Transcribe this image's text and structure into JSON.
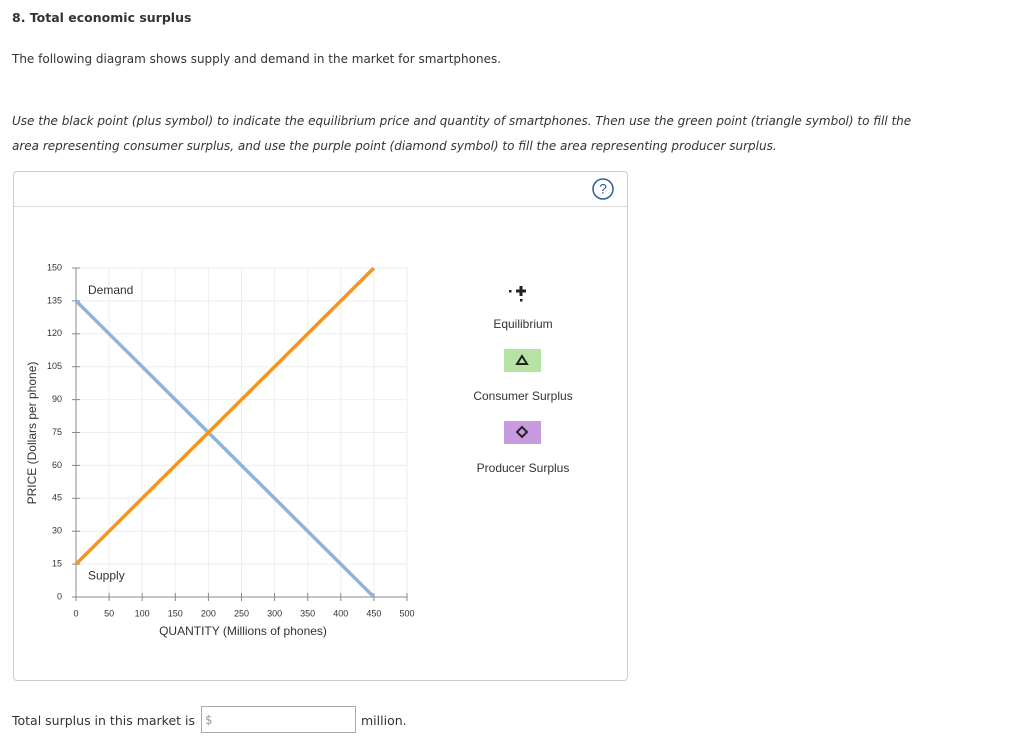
{
  "header": {
    "title": "8. Total economic surplus",
    "intro": "The following diagram shows supply and demand in the market for smartphones.",
    "instructions": [
      "Use the black point (plus symbol) to indicate the equilibrium price and quantity of smartphones. Then use the green point (triangle symbol) to fill the",
      "area representing consumer surplus, and use the purple point (diamond symbol) to fill the area representing producer surplus."
    ]
  },
  "help": "?",
  "chart_data": {
    "type": "line",
    "xlabel": "QUANTITY (Millions of phones)",
    "ylabel": "PRICE (Dollars per phone)",
    "x": [
      0,
      450
    ],
    "series": [
      {
        "name": "Demand",
        "color": "#8fb3de",
        "values": [
          135,
          0
        ]
      },
      {
        "name": "Supply",
        "color": "#f7941d",
        "values": [
          15,
          150
        ]
      }
    ],
    "xlim": [
      0,
      500
    ],
    "xticks": [
      0,
      50,
      100,
      150,
      200,
      250,
      300,
      350,
      400,
      450,
      500
    ],
    "ylim": [
      0,
      150
    ],
    "yticks": [
      0,
      15,
      30,
      45,
      60,
      75,
      90,
      105,
      120,
      135,
      150
    ],
    "grid": true
  },
  "palette": [
    {
      "label": "Equilibrium"
    },
    {
      "label": "Consumer Surplus"
    },
    {
      "label": "Producer Surplus"
    }
  ],
  "footer": {
    "prompt": "Total surplus in this market is",
    "currency": "$",
    "unit": "million."
  }
}
